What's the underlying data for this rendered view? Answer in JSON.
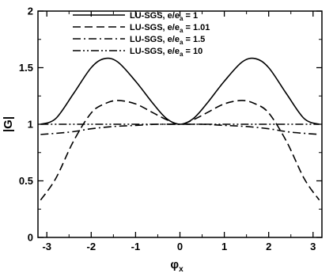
{
  "chart_data": {
    "type": "line",
    "xlabel": "φ",
    "xlabel_sub": "x",
    "ylabel": "|G|",
    "xlim": [
      -3.2,
      3.2
    ],
    "ylim": [
      0,
      2
    ],
    "xticks": [
      -3,
      -2,
      -1,
      0,
      1,
      2,
      3
    ],
    "xtick_labels": [
      "-3",
      "-2",
      "-1",
      "0",
      "1",
      "2",
      "3"
    ],
    "yticks": [
      0,
      0.5,
      1,
      1.5,
      2
    ],
    "ytick_labels": [
      "0",
      "0.5",
      "1",
      "1.5",
      "2"
    ],
    "grid": false,
    "legend_position": "top-left",
    "series": [
      {
        "name": "LU-SGS, e/e_a = 1",
        "legend": {
          "pre": "LU-SGS, e/e",
          "sub": "a",
          "post": " = 1"
        },
        "style": "solid",
        "x": [
          -3.14,
          -2.8,
          -2.4,
          -2.0,
          -1.7,
          -1.4,
          -1.0,
          -0.6,
          -0.3,
          0.0,
          0.3,
          0.6,
          1.0,
          1.4,
          1.7,
          2.0,
          2.4,
          2.8,
          3.14
        ],
        "y": [
          1.0,
          1.05,
          1.27,
          1.5,
          1.58,
          1.55,
          1.38,
          1.18,
          1.05,
          1.0,
          1.05,
          1.18,
          1.38,
          1.55,
          1.58,
          1.5,
          1.27,
          1.05,
          1.0
        ]
      },
      {
        "name": "LU-SGS, e/e_a = 1.01",
        "legend": {
          "pre": "LU-SGS, e/e",
          "sub": "a",
          "post": " = 1.01"
        },
        "style": "dash",
        "x": [
          -3.14,
          -2.8,
          -2.4,
          -2.0,
          -1.7,
          -1.4,
          -1.0,
          -0.6,
          -0.3,
          0.0,
          0.3,
          0.6,
          1.0,
          1.4,
          1.7,
          2.0,
          2.4,
          2.8,
          3.14
        ],
        "y": [
          0.33,
          0.52,
          0.85,
          1.1,
          1.18,
          1.21,
          1.18,
          1.1,
          1.04,
          1.0,
          1.04,
          1.1,
          1.18,
          1.21,
          1.18,
          1.1,
          0.85,
          0.52,
          0.33
        ]
      },
      {
        "name": "LU-SGS, e/e_a = 1.5",
        "legend": {
          "pre": "LU-SGS, e/e",
          "sub": "a",
          "post": " = 1.5"
        },
        "style": "dashdot",
        "x": [
          -3.14,
          -2.5,
          -2.0,
          -1.5,
          -1.0,
          -0.5,
          0.0,
          0.5,
          1.0,
          1.5,
          2.0,
          2.5,
          3.14
        ],
        "y": [
          0.91,
          0.93,
          0.96,
          0.98,
          0.99,
          1.0,
          1.0,
          1.0,
          0.99,
          0.98,
          0.96,
          0.93,
          0.91
        ]
      },
      {
        "name": "LU-SGS, e/e_a = 10",
        "legend": {
          "pre": "LU-SGS, e/e",
          "sub": "a",
          "post": " = 10"
        },
        "style": "dashdotdot",
        "x": [
          -3.14,
          -2.0,
          -1.0,
          0.0,
          1.0,
          2.0,
          3.14
        ],
        "y": [
          1.0,
          1.0,
          1.0,
          1.0,
          1.0,
          1.0,
          1.0
        ]
      }
    ]
  }
}
